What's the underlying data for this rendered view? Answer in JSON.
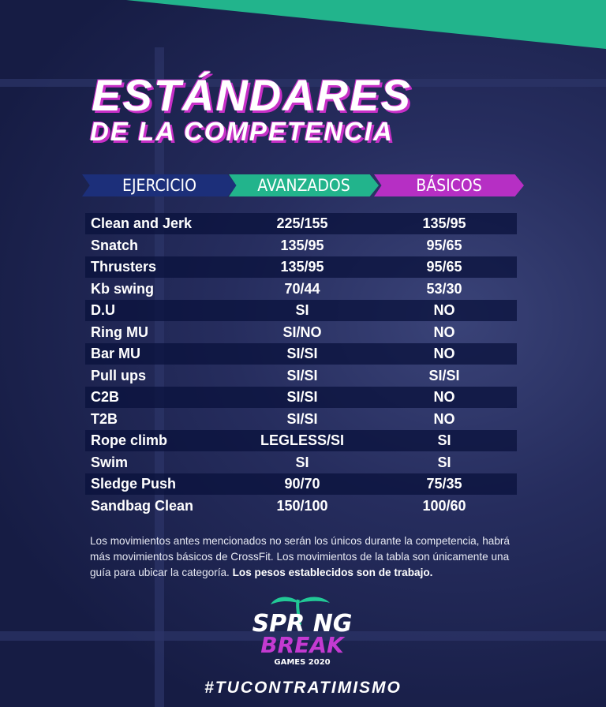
{
  "title": {
    "line1": "ESTÁNDARES",
    "line2": "DE LA COMPETENCIA"
  },
  "colors": {
    "teal": "#22b48c",
    "magenta": "#b62fc4",
    "navy": "#1c2f7a"
  },
  "headers": [
    "EJERCICIO",
    "AVANZADOS",
    "BÁSICOS"
  ],
  "rows": [
    [
      "Clean and Jerk",
      "225/155",
      "135/95"
    ],
    [
      "Snatch",
      "135/95",
      "95/65"
    ],
    [
      "Thrusters",
      "135/95",
      "95/65"
    ],
    [
      "Kb swing",
      "70/44",
      "53/30"
    ],
    [
      "D.U",
      "SI",
      "NO"
    ],
    [
      "Ring MU",
      "SI/NO",
      "NO"
    ],
    [
      "Bar  MU",
      "SI/SI",
      "NO"
    ],
    [
      "Pull ups",
      "SI/SI",
      "SI/SI"
    ],
    [
      "C2B",
      "SI/SI",
      "NO"
    ],
    [
      "T2B",
      "SI/SI",
      "NO"
    ],
    [
      "Rope climb",
      "LEGLESS/SI",
      "SI"
    ],
    [
      "Swim",
      "SI",
      "SI"
    ],
    [
      "Sledge Push",
      "90/70",
      "75/35"
    ],
    [
      "Sandbag Clean",
      "150/100",
      "100/60"
    ]
  ],
  "note": {
    "text": "Los movimientos antes mencionados no serán los únicos durante la competencia, habrá más movimientos básicos de CrossFit. Los movimientos de la tabla son únicamente una guía para ubicar la categoría. ",
    "bold": "Los pesos establecidos son de trabajo."
  },
  "logo": {
    "line1": "SPRING",
    "line2": "BREAK",
    "line3": "GAMES 2020"
  },
  "hashtag": "#TUCONTRATIMISMO"
}
